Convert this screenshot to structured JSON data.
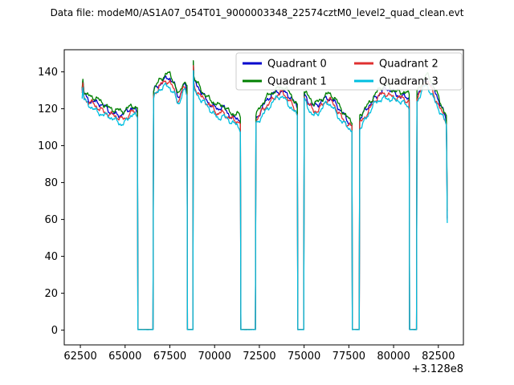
{
  "chart_data": {
    "type": "line",
    "title": "Data file: modeM0/AS1A07_054T01_9000003348_22574cztM0_level2_quad_clean.evt",
    "xlabel": "",
    "ylabel": "",
    "x_offset_label": "+3.128e8",
    "xlim": [
      61600,
      83900
    ],
    "ylim": [
      -8,
      152
    ],
    "x_ticks": [
      62500,
      65000,
      67500,
      70000,
      72500,
      75000,
      77500,
      80000,
      82500
    ],
    "y_ticks": [
      0,
      20,
      40,
      60,
      80,
      100,
      120,
      140
    ],
    "grid": false,
    "legend": {
      "position": "upper right",
      "columns": 2
    },
    "series": [
      {
        "name": "Quadrant 0",
        "color": "#0000cd",
        "offset": 1.2
      },
      {
        "name": "Quadrant 1",
        "color": "#008000",
        "offset": 3.0
      },
      {
        "name": "Quadrant 2",
        "color": "#e03030",
        "offset": -0.8
      },
      {
        "name": "Quadrant 3",
        "color": "#00bfe0",
        "offset": -2.8
      }
    ],
    "noise": {
      "amplitude": 2.0
    },
    "base_anchors": [
      [
        62600,
        129
      ],
      [
        62640,
        134
      ],
      [
        62700,
        128
      ],
      [
        62850,
        125
      ],
      [
        63000,
        124
      ],
      [
        63200,
        123
      ],
      [
        63450,
        121.5
      ],
      [
        63700,
        120.5
      ],
      [
        63950,
        119
      ],
      [
        64200,
        117.5
      ],
      [
        64500,
        116
      ],
      [
        64800,
        115
      ],
      [
        65000,
        116
      ],
      [
        65150,
        117.5
      ],
      [
        65300,
        119
      ],
      [
        65450,
        119.5
      ],
      [
        65600,
        118
      ],
      [
        65690,
        117
      ],
      [
        65715,
        0.3
      ],
      [
        66560,
        0.3
      ],
      [
        66590,
        128
      ],
      [
        66700,
        130
      ],
      [
        66900,
        132.5
      ],
      [
        67100,
        134
      ],
      [
        67300,
        135.5
      ],
      [
        67500,
        135
      ],
      [
        67650,
        133
      ],
      [
        67800,
        130
      ],
      [
        67900,
        126.5
      ],
      [
        68000,
        125
      ],
      [
        68080,
        127
      ],
      [
        68180,
        130.5
      ],
      [
        68280,
        132
      ],
      [
        68400,
        131
      ],
      [
        68460,
        129
      ],
      [
        68485,
        0.3
      ],
      [
        68790,
        0.3
      ],
      [
        68812,
        143
      ],
      [
        68840,
        134
      ],
      [
        68900,
        132.5
      ],
      [
        69050,
        130.5
      ],
      [
        69200,
        128.5
      ],
      [
        69400,
        126
      ],
      [
        69600,
        123.5
      ],
      [
        69800,
        121.5
      ],
      [
        70000,
        119.5
      ],
      [
        70200,
        118
      ],
      [
        70400,
        119.5
      ],
      [
        70550,
        118.5
      ],
      [
        70750,
        116.5
      ],
      [
        70950,
        115
      ],
      [
        71150,
        114
      ],
      [
        71350,
        113
      ],
      [
        71440,
        112.5
      ],
      [
        71465,
        0.3
      ],
      [
        72280,
        0.3
      ],
      [
        72310,
        113.5
      ],
      [
        72450,
        116
      ],
      [
        72650,
        119
      ],
      [
        72850,
        122
      ],
      [
        73050,
        124.5
      ],
      [
        73250,
        126.5
      ],
      [
        73450,
        128
      ],
      [
        73650,
        129
      ],
      [
        73850,
        128.5
      ],
      [
        74050,
        126.5
      ],
      [
        74250,
        124.5
      ],
      [
        74450,
        121.5
      ],
      [
        74620,
        119
      ],
      [
        74648,
        0.3
      ],
      [
        74980,
        0.3
      ],
      [
        75008,
        127
      ],
      [
        75150,
        124.5
      ],
      [
        75350,
        121.5
      ],
      [
        75550,
        119.5
      ],
      [
        75750,
        120.5
      ],
      [
        75950,
        122.5
      ],
      [
        76150,
        124.5
      ],
      [
        76350,
        125.5
      ],
      [
        76550,
        124
      ],
      [
        76750,
        121.5
      ],
      [
        76950,
        118.5
      ],
      [
        77150,
        116
      ],
      [
        77350,
        113.5
      ],
      [
        77550,
        111.5
      ],
      [
        77670,
        110.5
      ],
      [
        77695,
        0.3
      ],
      [
        78080,
        0.3
      ],
      [
        78108,
        112.5
      ],
      [
        78300,
        115.5
      ],
      [
        78500,
        118.5
      ],
      [
        78700,
        121.5
      ],
      [
        78900,
        124.5
      ],
      [
        79100,
        126.5
      ],
      [
        79300,
        128
      ],
      [
        79500,
        129
      ],
      [
        79700,
        129
      ],
      [
        79900,
        128
      ],
      [
        80100,
        127
      ],
      [
        80300,
        126.5
      ],
      [
        80500,
        126
      ],
      [
        80700,
        125
      ],
      [
        80870,
        124
      ],
      [
        80893,
        0.3
      ],
      [
        81280,
        0.3
      ],
      [
        81305,
        126
      ],
      [
        81450,
        129.5
      ],
      [
        81600,
        132
      ],
      [
        81750,
        134.5
      ],
      [
        81850,
        135
      ],
      [
        81950,
        134
      ],
      [
        82100,
        131.5
      ],
      [
        82250,
        128.5
      ],
      [
        82400,
        125.5
      ],
      [
        82550,
        122.5
      ],
      [
        82700,
        119
      ],
      [
        82850,
        116
      ],
      [
        82950,
        113
      ],
      [
        83000,
        60
      ]
    ]
  }
}
